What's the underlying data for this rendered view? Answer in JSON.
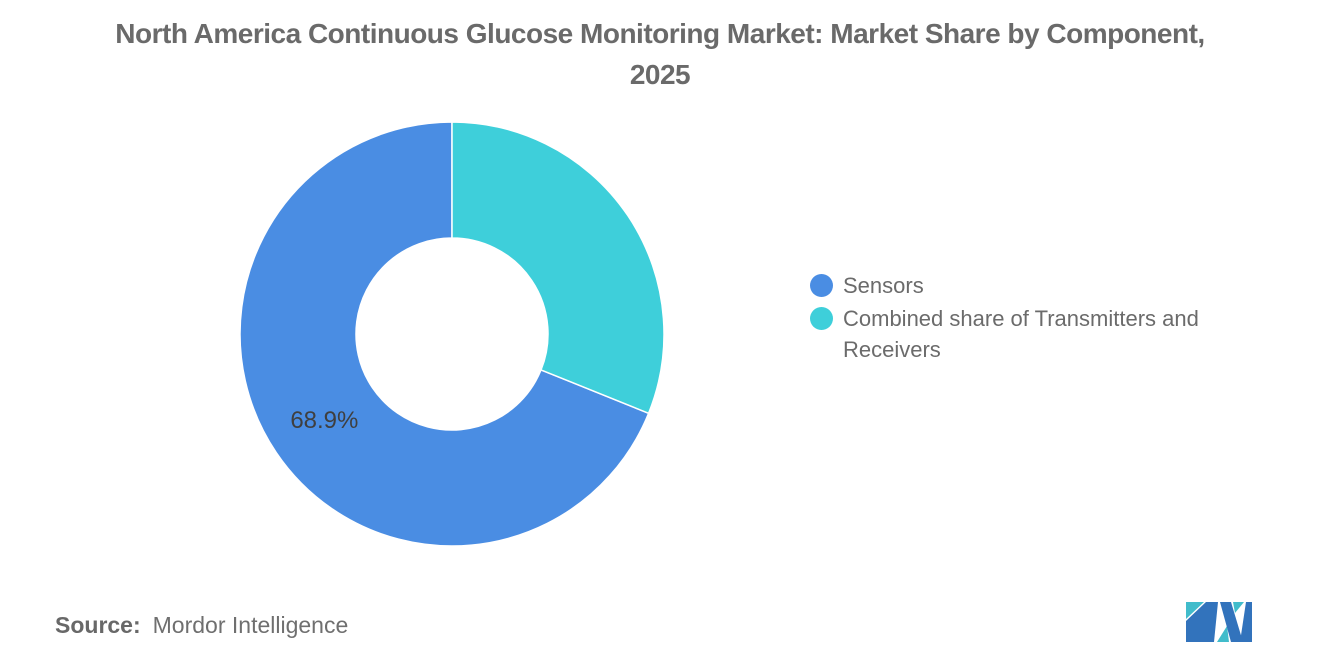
{
  "chart_data": {
    "type": "pie",
    "subtype": "donut",
    "title": "North America Continuous Glucose Monitoring Market: Market Share by Component, 2025",
    "units": "%",
    "total": 100,
    "series": [
      {
        "name": "Sensors",
        "value": 68.9,
        "color": "#4A8DE3",
        "data_label": "68.9%"
      },
      {
        "name": "Combined share of Transmitters and Receivers",
        "value": 31.1,
        "color": "#3ECFDA",
        "data_label": ""
      }
    ],
    "start_angle_deg": 0,
    "direction": "counterclockwise",
    "inner_radius_ratio": 0.455,
    "slice_separator_color": "#ffffff",
    "data_label_color": "#3f3f3f",
    "legend_position": "right",
    "grid": false
  },
  "source": {
    "label": "Source:",
    "value": "Mordor Intelligence"
  },
  "logo": {
    "name": "mordor-intelligence-logo-mark",
    "teal": "#41BCCB",
    "blue": "#3273BC"
  }
}
